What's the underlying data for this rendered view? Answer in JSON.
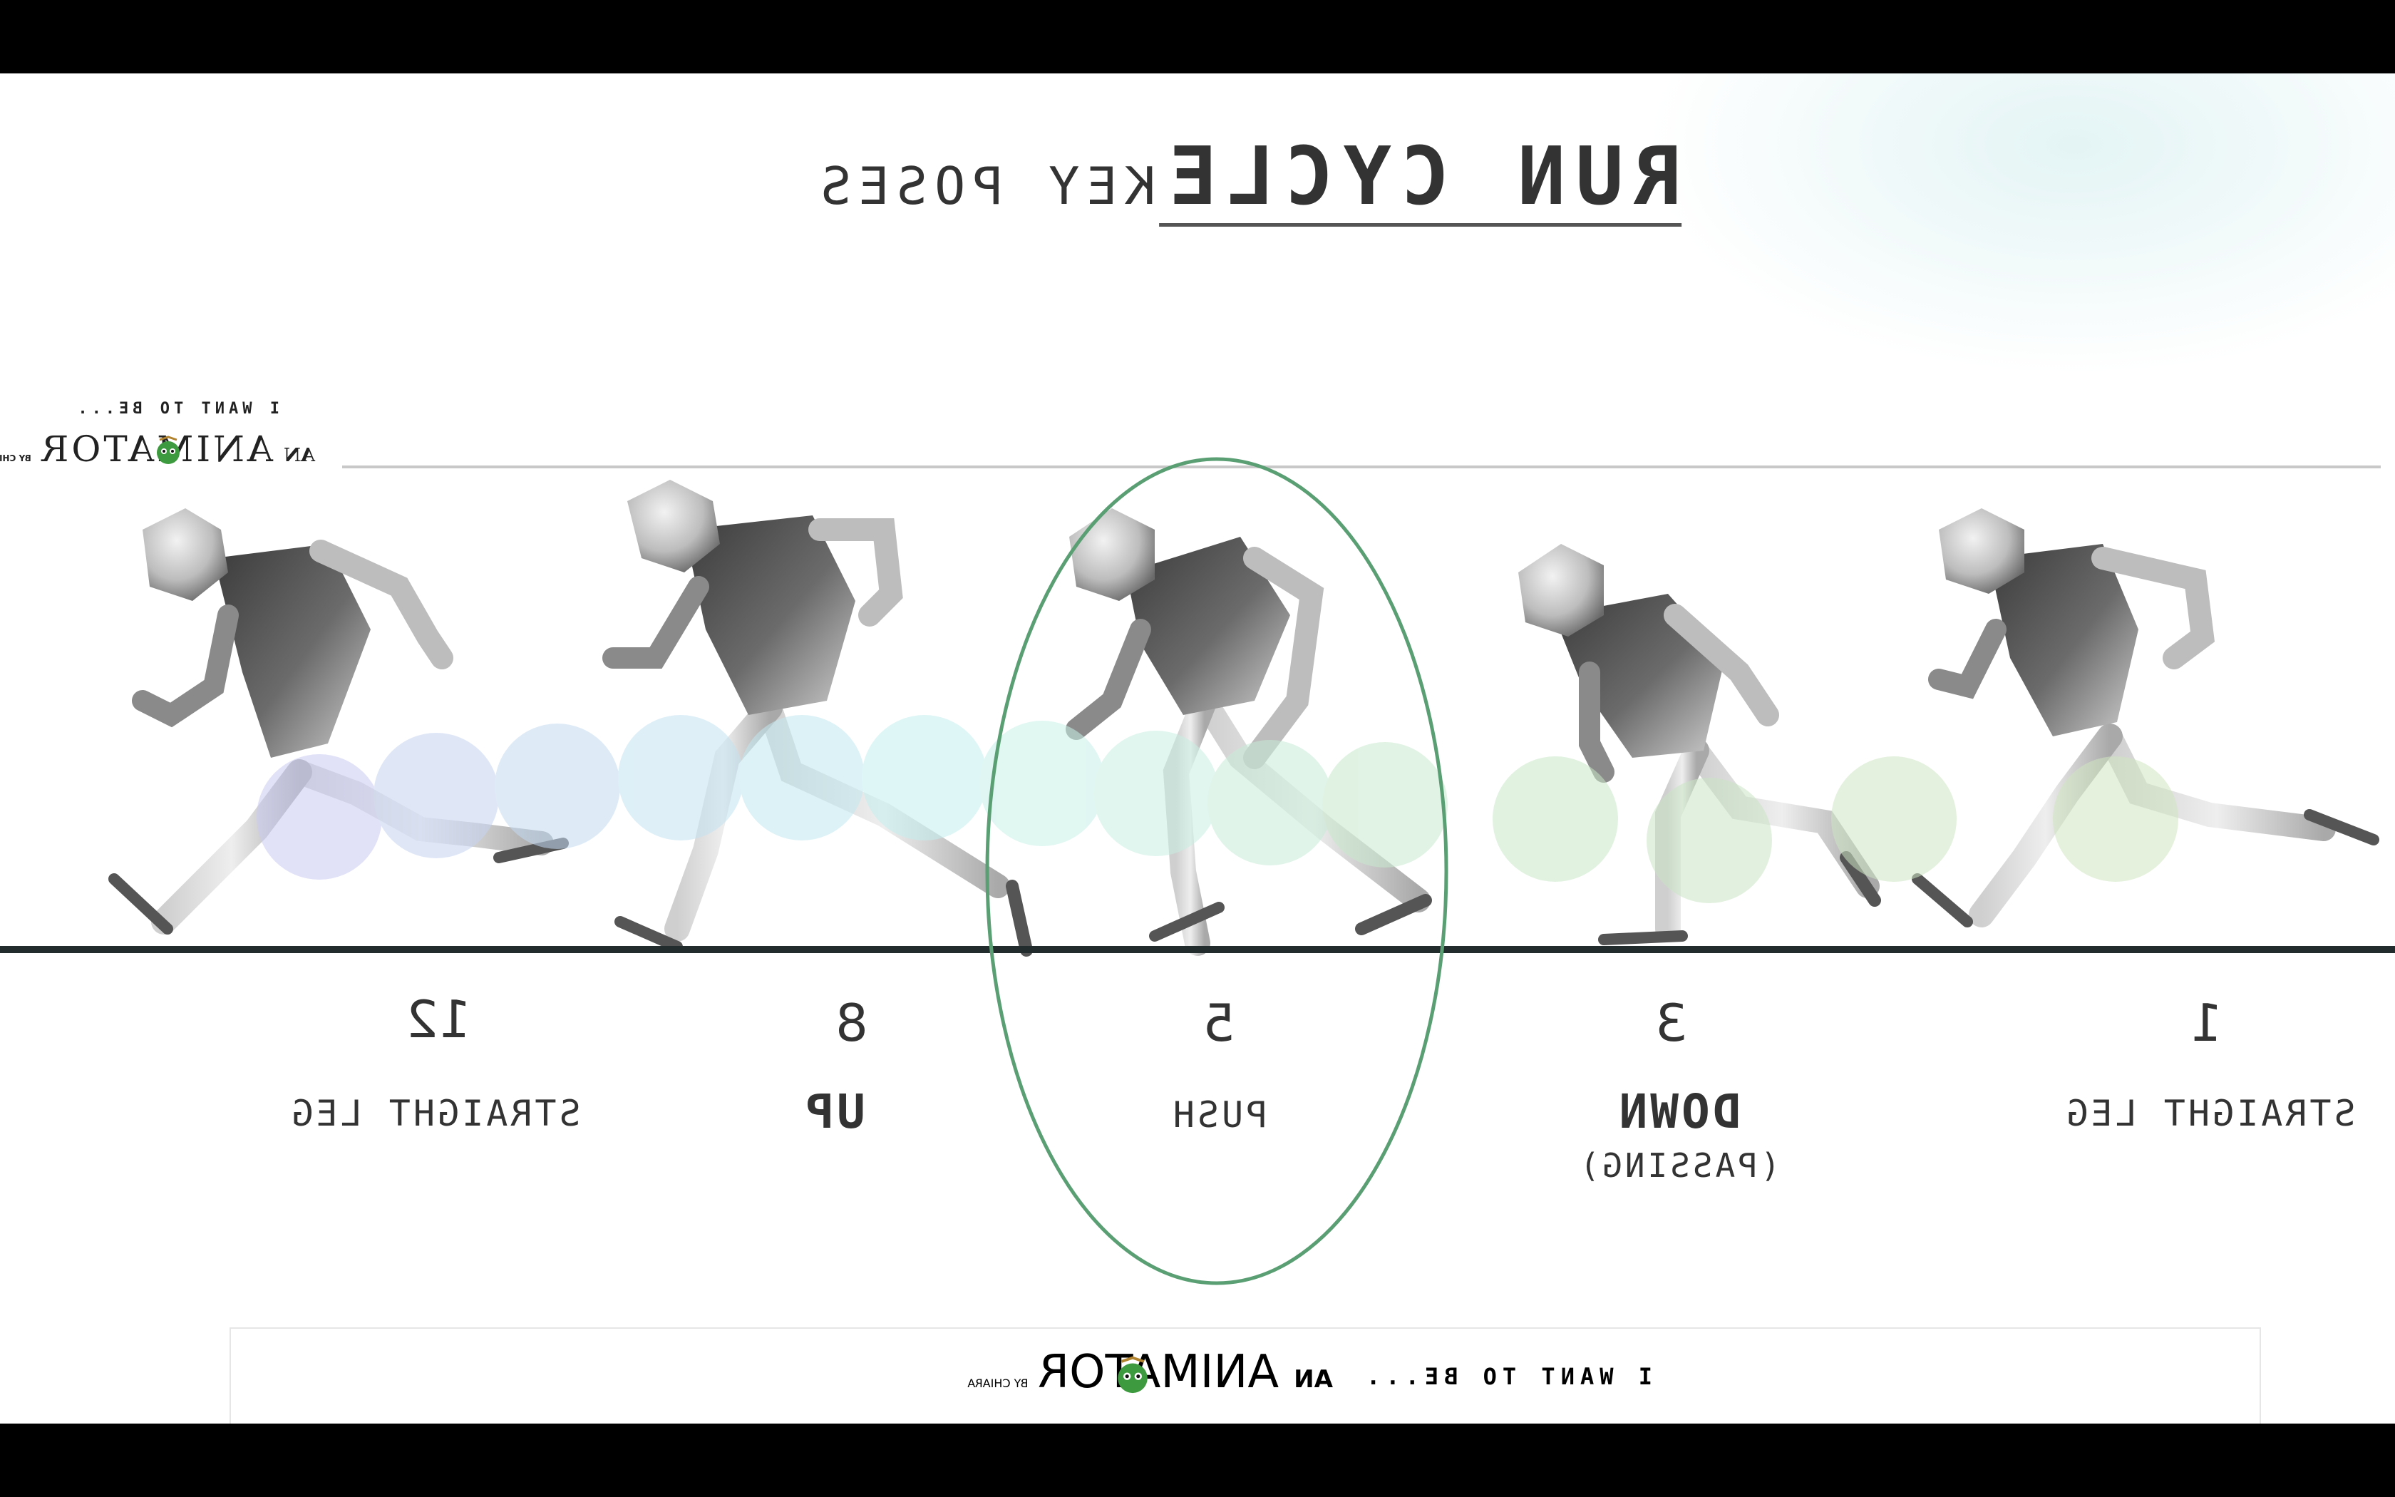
{
  "slide": {
    "title_main": "RUN CYCLE",
    "title_sub": "KEY POSES",
    "accent_color": "#5a9e73",
    "ground_color": "#222c2c"
  },
  "brand": {
    "tagline": "I WANT TO BE...",
    "an": "AN",
    "animator": "ANIMATOR",
    "by": "BY CHIARA"
  },
  "poses": [
    {
      "frame": "12",
      "label": "STRAIGHT LEG",
      "sub": ""
    },
    {
      "frame": "8",
      "label": "UP",
      "sub": ""
    },
    {
      "frame": "5",
      "label": "PUSH",
      "sub": "",
      "highlighted": true
    },
    {
      "frame": "3",
      "label": "DOWN",
      "sub": "(PASSING)"
    },
    {
      "frame": "1",
      "label": "STRAIGHT LEG",
      "sub": ""
    }
  ],
  "icons": [
    "animator-mascot-icon",
    "running-figure-icon"
  ]
}
